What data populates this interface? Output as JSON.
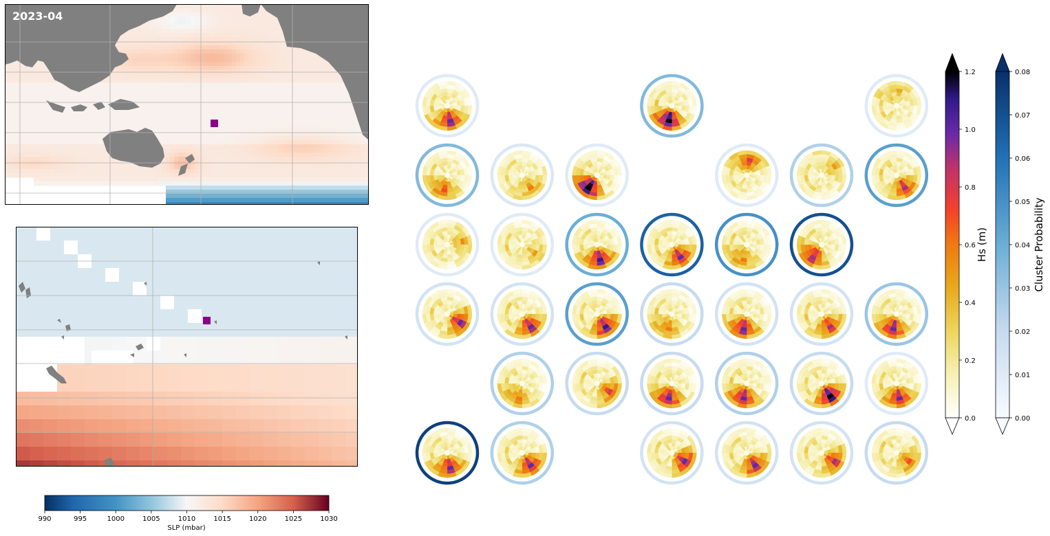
{
  "date_label": "2023-04",
  "slp_colorbar": {
    "label": "SLP (mbar)",
    "ticks": [
      990,
      995,
      1000,
      1005,
      1010,
      1015,
      1020,
      1025,
      1030
    ]
  },
  "hs_colorbar": {
    "label": "Hs (m)",
    "ticks": [
      "0.0",
      "0.2",
      "0.4",
      "0.6",
      "0.8",
      "1.0",
      "1.2"
    ]
  },
  "prob_colorbar": {
    "label": "Cluster Probability",
    "ticks": [
      "0.00",
      "0.01",
      "0.02",
      "0.03",
      "0.04",
      "0.05",
      "0.06",
      "0.07",
      "0.08"
    ]
  },
  "colors": {
    "land": "#808080",
    "marker": "#8b008b",
    "grid": "#b0b0b0"
  },
  "chart_data": {
    "type": "heatmap",
    "title": "2023-04",
    "grid_rows": 6,
    "grid_cols": 7,
    "clusters": [
      {
        "row": 0,
        "col": 0,
        "prob": 0.01,
        "peak_sector": 7,
        "peak_hs": 1.0
      },
      {
        "row": 0,
        "col": 3,
        "prob": 0.035,
        "peak_sector": 8,
        "peak_hs": 1.2
      },
      {
        "row": 0,
        "col": 6,
        "prob": 0.01,
        "peak_sector": 0,
        "peak_hs": 0.45
      },
      {
        "row": 1,
        "col": 0,
        "prob": 0.035,
        "peak_sector": 8,
        "peak_hs": 0.7
      },
      {
        "row": 1,
        "col": 1,
        "prob": 0.012,
        "peak_sector": 6,
        "peak_hs": 0.6
      },
      {
        "row": 1,
        "col": 2,
        "prob": 0.01,
        "peak_sector": 9,
        "peak_hs": 1.2
      },
      {
        "row": 1,
        "col": 4,
        "prob": 0.01,
        "peak_sector": 0,
        "peak_hs": 0.8
      },
      {
        "row": 1,
        "col": 5,
        "prob": 0.025,
        "peak_sector": 2,
        "peak_hs": 0.5
      },
      {
        "row": 1,
        "col": 6,
        "prob": 0.045,
        "peak_sector": 6,
        "peak_hs": 0.9
      },
      {
        "row": 2,
        "col": 0,
        "prob": 0.01,
        "peak_sector": 3,
        "peak_hs": 0.55
      },
      {
        "row": 2,
        "col": 1,
        "prob": 0.01,
        "peak_sector": 5,
        "peak_hs": 0.5
      },
      {
        "row": 2,
        "col": 2,
        "prob": 0.04,
        "peak_sector": 7,
        "peak_hs": 1.1
      },
      {
        "row": 2,
        "col": 3,
        "prob": 0.065,
        "peak_sector": 6,
        "peak_hs": 1.0
      },
      {
        "row": 2,
        "col": 4,
        "prob": 0.05,
        "peak_sector": 8,
        "peak_hs": 0.6
      },
      {
        "row": 2,
        "col": 5,
        "prob": 0.07,
        "peak_sector": 9,
        "peak_hs": 0.9
      },
      {
        "row": 3,
        "col": 0,
        "prob": 0.015,
        "peak_sector": 5,
        "peak_hs": 1.0
      },
      {
        "row": 3,
        "col": 1,
        "prob": 0.015,
        "peak_sector": 6,
        "peak_hs": 1.0
      },
      {
        "row": 3,
        "col": 2,
        "prob": 0.045,
        "peak_sector": 6,
        "peak_hs": 1.1
      },
      {
        "row": 3,
        "col": 3,
        "prob": 0.02,
        "peak_sector": 8,
        "peak_hs": 0.6
      },
      {
        "row": 3,
        "col": 4,
        "prob": 0.015,
        "peak_sector": 8,
        "peak_hs": 1.0
      },
      {
        "row": 3,
        "col": 5,
        "prob": 0.015,
        "peak_sector": 6,
        "peak_hs": 0.9
      },
      {
        "row": 3,
        "col": 6,
        "prob": 0.03,
        "peak_sector": 8,
        "peak_hs": 1.0
      },
      {
        "row": 4,
        "col": 1,
        "prob": 0.025,
        "peak_sector": 8,
        "peak_hs": 0.6
      },
      {
        "row": 4,
        "col": 2,
        "prob": 0.02,
        "peak_sector": 5,
        "peak_hs": 0.8
      },
      {
        "row": 4,
        "col": 3,
        "prob": 0.02,
        "peak_sector": 8,
        "peak_hs": 1.0
      },
      {
        "row": 4,
        "col": 4,
        "prob": 0.025,
        "peak_sector": 8,
        "peak_hs": 1.0
      },
      {
        "row": 4,
        "col": 5,
        "prob": 0.02,
        "peak_sector": 6,
        "peak_hs": 1.2
      },
      {
        "row": 4,
        "col": 6,
        "prob": 0.01,
        "peak_sector": 7,
        "peak_hs": 1.0
      },
      {
        "row": 5,
        "col": 0,
        "prob": 0.075,
        "peak_sector": 7,
        "peak_hs": 1.0
      },
      {
        "row": 5,
        "col": 1,
        "prob": 0.025,
        "peak_sector": 6,
        "peak_hs": 1.0
      },
      {
        "row": 5,
        "col": 3,
        "prob": 0.015,
        "peak_sector": 5,
        "peak_hs": 1.0
      },
      {
        "row": 5,
        "col": 4,
        "prob": 0.015,
        "peak_sector": 6,
        "peak_hs": 1.0
      },
      {
        "row": 5,
        "col": 5,
        "prob": 0.015,
        "peak_sector": 5,
        "peak_hs": 0.9
      },
      {
        "row": 5,
        "col": 6,
        "prob": 0.02,
        "peak_sector": 5,
        "peak_hs": 0.7
      }
    ]
  }
}
